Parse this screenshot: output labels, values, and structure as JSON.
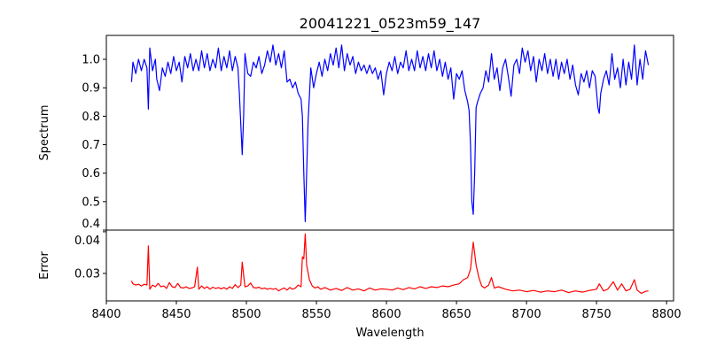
{
  "chart_data": [
    {
      "type": "line",
      "title": "20041221_0523m59_147",
      "xlabel": "",
      "ylabel": "Spectrum",
      "xlim": [
        8400,
        8805
      ],
      "ylim": [
        0.4,
        1.084
      ],
      "yticks": [
        0.4,
        0.5,
        0.6,
        0.7,
        0.8,
        0.9,
        1.0
      ],
      "ytick_labels": [
        "0.4",
        "0.5",
        "0.6",
        "0.7",
        "0.8",
        "0.9",
        "1.0"
      ],
      "color": "#0000ff",
      "series": [
        {
          "name": "spectrum",
          "x": [
            8418,
            8419,
            8421,
            8423,
            8425,
            8427,
            8429,
            8430,
            8431,
            8433,
            8435,
            8436,
            8438,
            8440,
            8442,
            8444,
            8446,
            8448,
            8450,
            8452,
            8454,
            8456,
            8458,
            8460,
            8462,
            8464,
            8466,
            8468,
            8470,
            8472,
            8474,
            8476,
            8478,
            8480,
            8482,
            8484,
            8486,
            8488,
            8490,
            8492,
            8494,
            8495,
            8497,
            8498,
            8499,
            8501,
            8503,
            8505,
            8507,
            8509,
            8511,
            8513,
            8515,
            8517,
            8519,
            8521,
            8523,
            8525,
            8527,
            8529,
            8531,
            8533,
            8535,
            8537,
            8539,
            8540,
            8541,
            8542,
            8543,
            8544,
            8545,
            8546,
            8548,
            8550,
            8552,
            8554,
            8556,
            8558,
            8560,
            8562,
            8564,
            8566,
            8568,
            8570,
            8572,
            8574,
            8576,
            8578,
            8580,
            8582,
            8584,
            8586,
            8588,
            8590,
            8592,
            8594,
            8596,
            8598,
            8600,
            8602,
            8604,
            8606,
            8608,
            8610,
            8612,
            8614,
            8616,
            8618,
            8620,
            8622,
            8624,
            8626,
            8628,
            8630,
            8632,
            8634,
            8636,
            8638,
            8640,
            8642,
            8644,
            8646,
            8648,
            8650,
            8652,
            8654,
            8656,
            8658,
            8659,
            8660,
            8661,
            8662,
            8663,
            8664,
            8665,
            8667,
            8669,
            8671,
            8673,
            8675,
            8677,
            8679,
            8681,
            8683,
            8685,
            8687,
            8689,
            8691,
            8693,
            8695,
            8697,
            8699,
            8701,
            8703,
            8705,
            8707,
            8709,
            8711,
            8713,
            8715,
            8717,
            8719,
            8721,
            8723,
            8725,
            8727,
            8729,
            8731,
            8733,
            8735,
            8737,
            8739,
            8741,
            8743,
            8745,
            8747,
            8749,
            8751,
            8752,
            8753,
            8755,
            8757,
            8759,
            8761,
            8763,
            8765,
            8767,
            8769,
            8771,
            8773,
            8775,
            8777,
            8779,
            8781,
            8783,
            8785,
            8787
          ],
          "y": [
            0.92,
            0.99,
            0.95,
            1.0,
            0.96,
            1.0,
            0.97,
            0.825,
            1.04,
            0.96,
            1.0,
            0.93,
            0.89,
            0.97,
            0.94,
            0.99,
            0.95,
            1.01,
            0.96,
            0.99,
            0.92,
            1.01,
            0.97,
            1.02,
            0.96,
            1.0,
            0.96,
            1.03,
            0.97,
            1.02,
            0.96,
            1.0,
            0.97,
            1.04,
            0.96,
            1.01,
            0.97,
            1.03,
            0.96,
            1.01,
            0.97,
            0.88,
            0.665,
            0.8,
            1.02,
            0.95,
            0.94,
            0.99,
            0.97,
            1.01,
            0.95,
            0.98,
            1.03,
            0.99,
            1.05,
            0.98,
            1.02,
            0.97,
            1.03,
            0.92,
            0.93,
            0.9,
            0.92,
            0.88,
            0.86,
            0.8,
            0.6,
            0.43,
            0.6,
            0.78,
            0.87,
            0.97,
            0.9,
            0.95,
            0.99,
            0.94,
            1.0,
            0.96,
            1.02,
            0.98,
            1.04,
            0.97,
            1.05,
            0.96,
            1.02,
            0.98,
            1.01,
            0.95,
            0.99,
            0.96,
            0.98,
            0.95,
            0.98,
            0.95,
            0.97,
            0.93,
            0.96,
            0.875,
            0.95,
            0.99,
            0.96,
            1.01,
            0.95,
            0.99,
            0.97,
            1.03,
            0.96,
            1.0,
            0.96,
            1.03,
            0.97,
            1.01,
            0.96,
            1.02,
            0.97,
            1.03,
            0.96,
            1.0,
            0.94,
            0.99,
            0.93,
            0.97,
            0.86,
            0.95,
            0.93,
            0.96,
            0.89,
            0.85,
            0.82,
            0.7,
            0.5,
            0.455,
            0.6,
            0.83,
            0.85,
            0.88,
            0.9,
            0.96,
            0.92,
            1.02,
            0.93,
            0.97,
            0.89,
            0.97,
            1.0,
            0.94,
            0.87,
            0.98,
            1.0,
            0.95,
            1.04,
            0.99,
            1.03,
            0.96,
            1.01,
            0.92,
            1.0,
            0.96,
            1.02,
            0.95,
            1.0,
            0.94,
            1.0,
            0.93,
            0.99,
            0.95,
            1.0,
            0.93,
            0.98,
            0.91,
            0.875,
            0.95,
            0.92,
            0.96,
            0.9,
            0.96,
            0.94,
            0.83,
            0.81,
            0.88,
            0.93,
            0.96,
            0.91,
            1.02,
            0.93,
            0.97,
            0.9,
            1.0,
            0.91,
            0.99,
            0.93,
            1.05,
            0.91,
            1.0,
            0.93,
            1.03,
            0.98
          ]
        }
      ]
    },
    {
      "type": "line",
      "xlabel": "Wavelength",
      "ylabel": "Error",
      "xlim": [
        8400,
        8805
      ],
      "ylim": [
        0.0234,
        0.0404
      ],
      "xticks": [
        8400,
        8450,
        8500,
        8550,
        8600,
        8650,
        8700,
        8750,
        8800
      ],
      "xtick_labels": [
        "8400",
        "8450",
        "8500",
        "8550",
        "8600",
        "8650",
        "8700",
        "8750",
        "8800"
      ],
      "yticks": [
        0.03,
        0.04
      ],
      "ytick_labels": [
        "0.03",
        "0.04"
      ],
      "color": "#ff0000",
      "series": [
        {
          "name": "error",
          "x": [
            8418,
            8419,
            8421,
            8423,
            8425,
            8427,
            8429,
            8430,
            8431,
            8433,
            8435,
            8437,
            8439,
            8441,
            8443,
            8445,
            8447,
            8449,
            8451,
            8453,
            8455,
            8457,
            8459,
            8461,
            8463,
            8465,
            8466,
            8468,
            8470,
            8472,
            8474,
            8476,
            8478,
            8480,
            8482,
            8484,
            8486,
            8488,
            8490,
            8492,
            8494,
            8496,
            8497,
            8499,
            8501,
            8503,
            8505,
            8507,
            8509,
            8511,
            8513,
            8515,
            8517,
            8519,
            8521,
            8523,
            8525,
            8527,
            8529,
            8531,
            8533,
            8535,
            8537,
            8539,
            8540,
            8541,
            8542,
            8543,
            8545,
            8547,
            8549,
            8551,
            8553,
            8556,
            8560,
            8564,
            8568,
            8572,
            8576,
            8580,
            8584,
            8588,
            8592,
            8596,
            8600,
            8604,
            8608,
            8612,
            8616,
            8620,
            8624,
            8628,
            8632,
            8636,
            8640,
            8644,
            8648,
            8652,
            8655,
            8658,
            8660,
            8662,
            8664,
            8666,
            8668,
            8670,
            8673,
            8675,
            8677,
            8680,
            8685,
            8690,
            8695,
            8700,
            8705,
            8710,
            8715,
            8720,
            8725,
            8730,
            8735,
            8740,
            8745,
            8750,
            8752,
            8755,
            8758,
            8762,
            8765,
            8768,
            8771,
            8774,
            8777,
            8779,
            8782,
            8785,
            8787
          ],
          "y": [
            0.0282,
            0.0275,
            0.0272,
            0.0274,
            0.027,
            0.0274,
            0.0272,
            0.0366,
            0.0262,
            0.0272,
            0.0268,
            0.0276,
            0.0268,
            0.027,
            0.0264,
            0.0278,
            0.0268,
            0.0266,
            0.0276,
            0.0266,
            0.0265,
            0.0268,
            0.0264,
            0.0265,
            0.0268,
            0.0315,
            0.0262,
            0.027,
            0.0264,
            0.0268,
            0.0262,
            0.0267,
            0.0264,
            0.0266,
            0.0263,
            0.0266,
            0.0262,
            0.0268,
            0.0264,
            0.0273,
            0.0266,
            0.0272,
            0.0327,
            0.0268,
            0.027,
            0.0277,
            0.0266,
            0.0265,
            0.0267,
            0.0263,
            0.0265,
            0.0262,
            0.0264,
            0.0262,
            0.0264,
            0.0258,
            0.0262,
            0.0265,
            0.026,
            0.0266,
            0.0262,
            0.0265,
            0.0272,
            0.0268,
            0.034,
            0.0335,
            0.0395,
            0.032,
            0.0285,
            0.027,
            0.0265,
            0.0268,
            0.0262,
            0.0266,
            0.026,
            0.0264,
            0.0259,
            0.0266,
            0.026,
            0.0263,
            0.0258,
            0.0265,
            0.026,
            0.0263,
            0.0262,
            0.026,
            0.0265,
            0.0261,
            0.0266,
            0.0263,
            0.0268,
            0.0264,
            0.0268,
            0.0266,
            0.027,
            0.0268,
            0.0272,
            0.0275,
            0.0285,
            0.029,
            0.031,
            0.0375,
            0.032,
            0.029,
            0.027,
            0.0265,
            0.0272,
            0.029,
            0.0265,
            0.0268,
            0.0262,
            0.0258,
            0.026,
            0.0256,
            0.0259,
            0.0255,
            0.0258,
            0.0256,
            0.026,
            0.0254,
            0.0258,
            0.0255,
            0.0259,
            0.0262,
            0.0275,
            0.0258,
            0.0262,
            0.028,
            0.026,
            0.0275,
            0.0258,
            0.0262,
            0.0285,
            0.026,
            0.0252,
            0.0257,
            0.0258
          ]
        }
      ]
    }
  ]
}
